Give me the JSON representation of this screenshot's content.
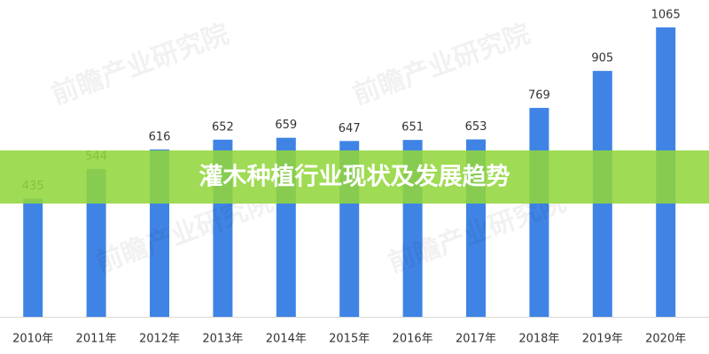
{
  "chart_data": {
    "type": "bar",
    "title": "灌木种植行业现状及发展趋势",
    "watermark": "前瞻产业研究院",
    "categories": [
      "2010年",
      "2011年",
      "2012年",
      "2013年",
      "2014年",
      "2015年",
      "2016年",
      "2017年",
      "2018年",
      "2019年",
      "2020年"
    ],
    "values": [
      435,
      544,
      616,
      652,
      659,
      647,
      651,
      653,
      769,
      905,
      1065
    ],
    "color": "#3f84e5",
    "ylim": [
      0,
      1065
    ]
  }
}
